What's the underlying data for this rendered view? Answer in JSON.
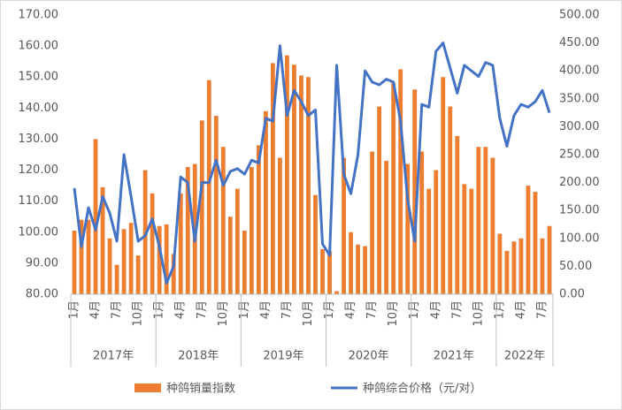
{
  "chart_data": {
    "type": "bar_line",
    "categories": [
      "1月",
      null,
      null,
      "4月",
      null,
      null,
      "7月",
      null,
      null,
      "10月",
      null,
      null,
      "1月",
      null,
      null,
      "4月",
      null,
      null,
      "7月",
      null,
      null,
      "10月",
      null,
      null,
      "1月",
      null,
      null,
      "4月",
      null,
      null,
      "7月",
      null,
      null,
      "10月",
      null,
      null,
      "1月",
      null,
      null,
      "4月",
      null,
      null,
      "7月",
      null,
      null,
      "10月",
      null,
      null,
      "1月",
      null,
      null,
      "4月",
      null,
      null,
      "7月",
      null,
      null,
      "10月",
      null,
      null,
      "1月",
      null,
      null,
      "4月",
      null,
      null,
      "7月",
      null
    ],
    "years": [
      "2017年",
      "2018年",
      "2019年",
      "2020年",
      "2021年",
      "2022年"
    ],
    "series": [
      {
        "name": "种鸽销量指数",
        "color": "#ED7D31",
        "kind": "bar",
        "values": [
          100.5,
          104,
          104,
          130,
          114.5,
          98,
          89.5,
          101,
          103,
          92.5,
          120,
          112.5,
          102,
          102.5,
          93,
          112.5,
          121,
          122,
          136,
          149,
          137.5,
          127.5,
          105,
          114,
          100.5,
          121,
          128,
          139,
          154.5,
          124,
          157,
          154,
          150.5,
          150,
          112,
          94.5,
          94,
          81,
          124,
          100,
          96,
          95.5,
          126,
          140.5,
          123,
          148,
          152.5,
          122,
          146,
          126,
          114,
          120,
          150,
          140.5,
          131,
          115.5,
          114,
          127.5,
          127.5,
          124,
          99.5,
          94,
          97,
          98,
          115,
          113,
          98,
          102
        ]
      },
      {
        "name": "种鸽综合价格（元/对）",
        "color": "#4472C4",
        "kind": "line",
        "axis": "y2",
        "values": [
          190,
          85,
          155,
          115,
          175,
          145,
          95,
          250,
          175,
          95,
          105,
          135,
          85,
          20,
          50,
          210,
          200,
          95,
          200,
          200,
          240,
          195,
          220,
          225,
          215,
          240,
          235,
          315,
          310,
          445,
          320,
          365,
          345,
          320,
          330,
          90,
          70,
          410,
          215,
          180,
          250,
          400,
          380,
          375,
          385,
          380,
          310,
          170,
          95,
          340,
          335,
          435,
          450,
          405,
          360,
          410,
          400,
          390,
          415,
          410,
          315,
          265,
          320,
          340,
          335,
          345,
          365,
          325
        ]
      }
    ],
    "ylim": [
      80,
      170
    ],
    "yticks": [
      {
        "value": 80,
        "label": "80.00"
      },
      {
        "value": 90,
        "label": "90.00"
      },
      {
        "value": 100,
        "label": "100.00"
      },
      {
        "value": 110,
        "label": "110.00"
      },
      {
        "value": 120,
        "label": "120.00"
      },
      {
        "value": 130,
        "label": "130.00"
      },
      {
        "value": 140,
        "label": "140.00"
      },
      {
        "value": 150,
        "label": "150.00"
      },
      {
        "value": 160,
        "label": "160.00"
      },
      {
        "value": 170,
        "label": "170.00"
      }
    ],
    "y2lim": [
      0,
      500
    ],
    "y2ticks": [
      {
        "value": 0,
        "label": "0.00"
      },
      {
        "value": 50,
        "label": "50.00"
      },
      {
        "value": 100,
        "label": "100.00"
      },
      {
        "value": 150,
        "label": "150.00"
      },
      {
        "value": 200,
        "label": "200.00"
      },
      {
        "value": 250,
        "label": "250.00"
      },
      {
        "value": 300,
        "label": "300.00"
      },
      {
        "value": 350,
        "label": "350.00"
      },
      {
        "value": 400,
        "label": "400.00"
      },
      {
        "value": 450,
        "label": "450.00"
      },
      {
        "value": 500,
        "label": "500.00"
      }
    ],
    "grid": false
  }
}
